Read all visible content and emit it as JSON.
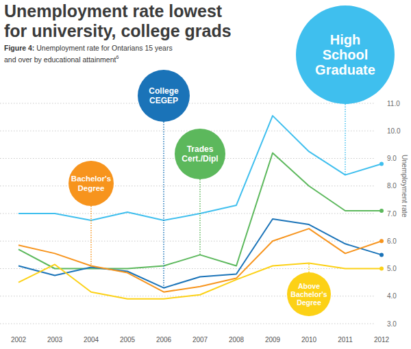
{
  "chart_data": {
    "type": "line",
    "title": "Unemployment rate lowest for university, college grads",
    "figure_label": "Figure 4:",
    "subtitle": "Unemployment rate for Ontarians 15 years and over by educational attainment",
    "footnote_marker": "6",
    "y_label": "Unemployment rate",
    "categories": [
      "2002",
      "2003",
      "2004",
      "2005",
      "2006",
      "2007",
      "2008",
      "2009",
      "2010",
      "2011",
      "2012"
    ],
    "series": [
      {
        "name": "High School Graduate",
        "color": "#3fbfee",
        "values": [
          7.0,
          7.0,
          6.75,
          7.05,
          6.75,
          7.0,
          7.3,
          10.55,
          9.25,
          8.4,
          8.8
        ]
      },
      {
        "name": "Trades Cert./Dipl",
        "color": "#5cb85c",
        "values": [
          5.7,
          5.0,
          5.0,
          5.0,
          5.1,
          5.5,
          5.1,
          9.2,
          8.0,
          7.1,
          7.1
        ]
      },
      {
        "name": "College CEGEP",
        "color": "#1a73b8",
        "values": [
          5.1,
          4.75,
          5.05,
          4.9,
          4.3,
          4.7,
          4.8,
          6.8,
          6.6,
          5.9,
          5.5
        ]
      },
      {
        "name": "Bachelor's Degree",
        "color": "#f7941d",
        "values": [
          5.85,
          5.55,
          5.1,
          4.85,
          4.15,
          4.35,
          4.65,
          6.0,
          6.45,
          5.55,
          6.0
        ]
      },
      {
        "name": "Above Bachelor's Degree",
        "color": "#fcd116",
        "values": [
          4.5,
          5.15,
          4.15,
          3.9,
          3.9,
          4.05,
          4.6,
          5.1,
          5.2,
          5.0,
          5.0
        ]
      }
    ],
    "ylim": [
      3,
      11
    ],
    "yticks": [
      {
        "value": 3,
        "label": "3.0"
      },
      {
        "value": 4,
        "label": "4.0"
      },
      {
        "value": 5,
        "label": "5.0"
      },
      {
        "value": 6,
        "label": "6.0"
      },
      {
        "value": 7,
        "label": "7.0"
      },
      {
        "value": 8,
        "label": "8.0"
      },
      {
        "value": 9,
        "label": "9.0"
      },
      {
        "value": 10,
        "label": "10.0"
      },
      {
        "value": 11,
        "label": "11.0"
      }
    ],
    "grid": true
  }
}
